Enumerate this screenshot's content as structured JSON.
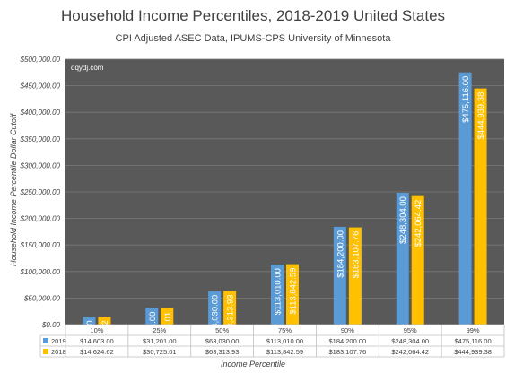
{
  "chart_data": {
    "type": "bar",
    "title": "Household Income Percentiles, 2018-2019 United States",
    "subtitle": "CPI Adjusted ASEC Data, IPUMS-CPS University of Minnesota",
    "watermark": "dqydj.com",
    "xlabel": "Income Percentile",
    "ylabel": "Household Income Percentile Dollar Cutoff",
    "ylim": [
      0,
      500000
    ],
    "yticks": [
      "$0.00",
      "$50,000.00",
      "$100,000.00",
      "$150,000.00",
      "$200,000.00",
      "$250,000.00",
      "$300,000.00",
      "$350,000.00",
      "$400,000.00",
      "$450,000.00",
      "$500,000.00"
    ],
    "grid": true,
    "categories": [
      "10%",
      "25%",
      "50%",
      "75%",
      "90%",
      "95%",
      "99%"
    ],
    "series": [
      {
        "name": "2019",
        "color": "#5b9bd5",
        "values": [
          14603.0,
          31201.0,
          63030.0,
          113010.0,
          184200.0,
          248304.0,
          475116.0
        ],
        "labels": [
          "$14,603.00",
          "$31,201.00",
          "$63,030.00",
          "$113,010.00",
          "$184,200.00",
          "$248,304.00",
          "$475,116.00"
        ]
      },
      {
        "name": "2018",
        "color": "#ffc000",
        "values": [
          14624.62,
          30725.01,
          63313.93,
          113842.59,
          183107.76,
          242064.42,
          444939.38
        ],
        "labels": [
          "$14,624.62",
          "$30,725.01",
          "$63,313.93",
          "$113,842.59",
          "$183,107.76",
          "$242,064.42",
          "$444,939.38"
        ]
      }
    ],
    "table": {
      "shown": true,
      "rows": [
        {
          "series": "2019",
          "cells": [
            "$14,603.00",
            "$31,201.00",
            "$63,030.00",
            "$113,010.00",
            "$184,200.00",
            "$248,304.00",
            "$475,116.00"
          ]
        },
        {
          "series": "2018",
          "cells": [
            "$14,624.62",
            "$30,725.01",
            "$63,313.93",
            "$113,842.59",
            "$183,107.76",
            "$242,064.42",
            "$444,939.38"
          ]
        }
      ]
    },
    "plot_background": "#595959",
    "gridline_color": "#7a7a7a"
  }
}
